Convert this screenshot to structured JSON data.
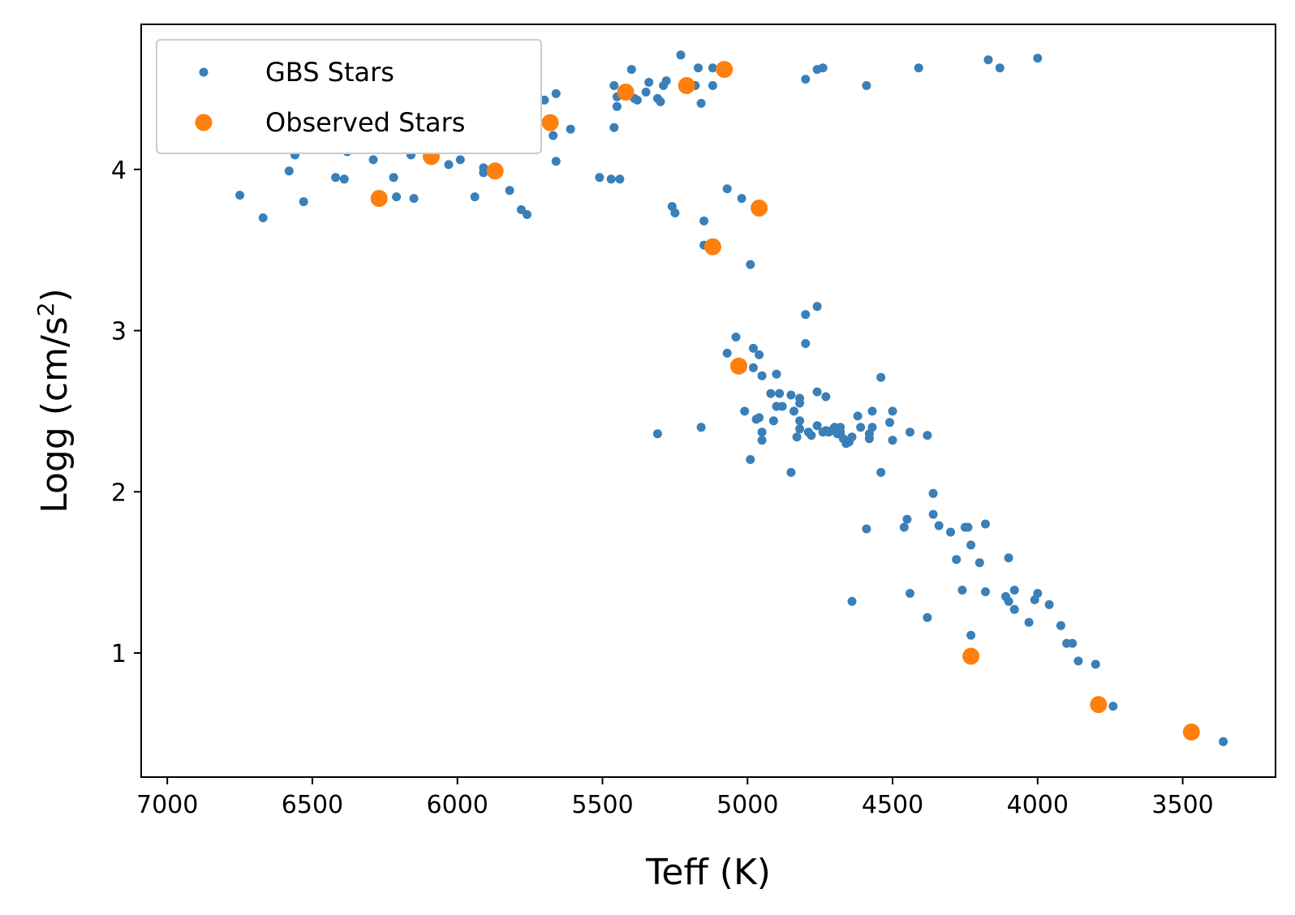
{
  "chart_data": {
    "type": "scatter",
    "xlabel": "Teff (K)",
    "ylabel_main": "Logg (cm/s",
    "ylabel_sup": "2",
    "ylabel_close": ")",
    "xlim": [
      7090,
      3180
    ],
    "ylim": [
      4.9,
      0.23
    ],
    "x_inverted": true,
    "y_inverted": true,
    "xticks": [
      7000,
      6500,
      6000,
      5500,
      5000,
      4500,
      4000,
      3500
    ],
    "yticks": [
      1,
      2,
      3,
      4
    ],
    "grid": false,
    "legend_position": "top-left",
    "series": [
      {
        "name": "GBS Stars",
        "color": "#3a7fb8",
        "marker": "small-dot",
        "points": [
          [
            3360,
            0.45
          ],
          [
            3740,
            0.67
          ],
          [
            3800,
            0.93
          ],
          [
            3860,
            0.95
          ],
          [
            3900,
            1.06
          ],
          [
            3880,
            1.06
          ],
          [
            3920,
            1.17
          ],
          [
            3960,
            1.3
          ],
          [
            4000,
            1.37
          ],
          [
            4010,
            1.33
          ],
          [
            4030,
            1.19
          ],
          [
            4080,
            1.27
          ],
          [
            4080,
            1.39
          ],
          [
            4100,
            1.32
          ],
          [
            4110,
            1.35
          ],
          [
            4100,
            1.59
          ],
          [
            4180,
            1.38
          ],
          [
            4200,
            1.56
          ],
          [
            4180,
            1.8
          ],
          [
            4230,
            1.67
          ],
          [
            4230,
            1.11
          ],
          [
            4240,
            1.78
          ],
          [
            4250,
            1.78
          ],
          [
            4260,
            1.39
          ],
          [
            4280,
            1.58
          ],
          [
            4300,
            1.75
          ],
          [
            4340,
            1.79
          ],
          [
            4360,
            1.86
          ],
          [
            4360,
            1.99
          ],
          [
            4380,
            1.22
          ],
          [
            4380,
            2.35
          ],
          [
            4440,
            1.37
          ],
          [
            4450,
            1.83
          ],
          [
            4460,
            1.78
          ],
          [
            4440,
            2.37
          ],
          [
            4500,
            2.32
          ],
          [
            4500,
            2.5
          ],
          [
            4510,
            2.43
          ],
          [
            4540,
            2.12
          ],
          [
            4540,
            2.71
          ],
          [
            4570,
            2.4
          ],
          [
            4570,
            2.5
          ],
          [
            4580,
            2.36
          ],
          [
            4580,
            2.33
          ],
          [
            4590,
            1.77
          ],
          [
            4590,
            4.52
          ],
          [
            4610,
            2.4
          ],
          [
            4620,
            2.47
          ],
          [
            4640,
            2.34
          ],
          [
            4650,
            2.31
          ],
          [
            4640,
            1.32
          ],
          [
            4660,
            2.3
          ],
          [
            4670,
            2.33
          ],
          [
            4680,
            2.4
          ],
          [
            4680,
            2.37
          ],
          [
            4690,
            2.36
          ],
          [
            4700,
            2.38
          ],
          [
            4700,
            2.4
          ],
          [
            4710,
            2.38
          ],
          [
            4720,
            2.37
          ],
          [
            4730,
            2.38
          ],
          [
            4730,
            2.59
          ],
          [
            4740,
            2.37
          ],
          [
            4740,
            4.63
          ],
          [
            4760,
            4.62
          ],
          [
            4760,
            2.41
          ],
          [
            4760,
            2.62
          ],
          [
            4760,
            3.15
          ],
          [
            4780,
            2.35
          ],
          [
            4790,
            2.37
          ],
          [
            4800,
            3.1
          ],
          [
            4800,
            2.92
          ],
          [
            4800,
            4.56
          ],
          [
            4820,
            2.39
          ],
          [
            4820,
            2.44
          ],
          [
            4820,
            2.55
          ],
          [
            4820,
            2.58
          ],
          [
            4830,
            2.34
          ],
          [
            4840,
            2.5
          ],
          [
            4850,
            2.12
          ],
          [
            4850,
            2.6
          ],
          [
            4880,
            2.53
          ],
          [
            4890,
            2.61
          ],
          [
            4900,
            2.53
          ],
          [
            4900,
            2.73
          ],
          [
            4910,
            2.44
          ],
          [
            4920,
            2.61
          ],
          [
            4950,
            2.72
          ],
          [
            4950,
            2.37
          ],
          [
            4950,
            2.32
          ],
          [
            4960,
            2.46
          ],
          [
            4960,
            2.85
          ],
          [
            4970,
            2.45
          ],
          [
            4980,
            2.77
          ],
          [
            4980,
            2.89
          ],
          [
            4990,
            2.2
          ],
          [
            4990,
            3.41
          ],
          [
            5010,
            2.5
          ],
          [
            5020,
            3.82
          ],
          [
            5040,
            2.96
          ],
          [
            5070,
            2.86
          ],
          [
            5070,
            3.88
          ],
          [
            5120,
            4.52
          ],
          [
            5120,
            4.63
          ],
          [
            5150,
            3.53
          ],
          [
            5150,
            3.68
          ],
          [
            5160,
            2.4
          ],
          [
            5160,
            4.41
          ],
          [
            5170,
            4.63
          ],
          [
            5180,
            4.52
          ],
          [
            5230,
            4.71
          ],
          [
            5250,
            3.73
          ],
          [
            5260,
            3.77
          ],
          [
            5280,
            4.55
          ],
          [
            5290,
            4.52
          ],
          [
            5300,
            4.42
          ],
          [
            5310,
            4.44
          ],
          [
            5310,
            2.36
          ],
          [
            5340,
            4.54
          ],
          [
            5350,
            4.48
          ],
          [
            5380,
            4.43
          ],
          [
            5390,
            4.44
          ],
          [
            5400,
            4.62
          ],
          [
            5440,
            3.94
          ],
          [
            5450,
            4.39
          ],
          [
            5450,
            4.45
          ],
          [
            5460,
            4.52
          ],
          [
            5460,
            4.26
          ],
          [
            5470,
            3.94
          ],
          [
            5510,
            3.95
          ],
          [
            5610,
            4.25
          ],
          [
            5660,
            4.05
          ],
          [
            5660,
            4.47
          ],
          [
            5670,
            4.21
          ],
          [
            5700,
            4.43
          ],
          [
            5740,
            4.33
          ],
          [
            5760,
            3.72
          ],
          [
            5780,
            3.75
          ],
          [
            5780,
            4.5
          ],
          [
            5800,
            4.36
          ],
          [
            5810,
            4.31
          ],
          [
            5820,
            4.19
          ],
          [
            5820,
            3.87
          ],
          [
            5830,
            4.36
          ],
          [
            5850,
            4.28
          ],
          [
            5880,
            4.47
          ],
          [
            5910,
            3.98
          ],
          [
            5910,
            4.01
          ],
          [
            5920,
            4.16
          ],
          [
            5930,
            4.37
          ],
          [
            5940,
            3.83
          ],
          [
            5960,
            4.3
          ],
          [
            5990,
            4.06
          ],
          [
            6000,
            4.42
          ],
          [
            6010,
            4.23
          ],
          [
            6030,
            4.03
          ],
          [
            6040,
            4.34
          ],
          [
            6060,
            4.48
          ],
          [
            6160,
            4.09
          ],
          [
            6170,
            4.27
          ],
          [
            6150,
            3.82
          ],
          [
            6200,
            4.16
          ],
          [
            6210,
            4.26
          ],
          [
            6210,
            3.83
          ],
          [
            6220,
            3.95
          ],
          [
            6230,
            4.26
          ],
          [
            6250,
            4.4
          ],
          [
            6280,
            4.38
          ],
          [
            6290,
            4.06
          ],
          [
            6290,
            4.16
          ],
          [
            6310,
            4.35
          ],
          [
            6330,
            4.29
          ],
          [
            6380,
            4.11
          ],
          [
            6390,
            3.94
          ],
          [
            6410,
            4.14
          ],
          [
            6420,
            3.95
          ],
          [
            6480,
            4.15
          ],
          [
            6510,
            4.31
          ],
          [
            6530,
            3.8
          ],
          [
            6560,
            4.09
          ],
          [
            6580,
            3.99
          ],
          [
            6630,
            4.18
          ],
          [
            6670,
            3.7
          ],
          [
            6750,
            3.84
          ],
          [
            6780,
            4.23
          ],
          [
            6910,
            4.23
          ],
          [
            4410,
            4.63
          ],
          [
            4170,
            4.68
          ],
          [
            4130,
            4.63
          ],
          [
            4000,
            4.69
          ]
        ]
      },
      {
        "name": "Observed Stars",
        "color": "#ff7f0e",
        "marker": "large-dot",
        "points": [
          [
            3470,
            0.51
          ],
          [
            3790,
            0.68
          ],
          [
            4230,
            0.98
          ],
          [
            5030,
            2.78
          ],
          [
            5120,
            3.52
          ],
          [
            4960,
            3.76
          ],
          [
            5080,
            4.62
          ],
          [
            5210,
            4.52
          ],
          [
            5420,
            4.48
          ],
          [
            5680,
            4.29
          ],
          [
            5780,
            4.42
          ],
          [
            5820,
            4.42
          ],
          [
            5810,
            4.28
          ],
          [
            5870,
            3.99
          ],
          [
            5980,
            4.29
          ],
          [
            6090,
            4.08
          ],
          [
            6170,
            4.27
          ],
          [
            6270,
            3.82
          ]
        ]
      }
    ]
  }
}
